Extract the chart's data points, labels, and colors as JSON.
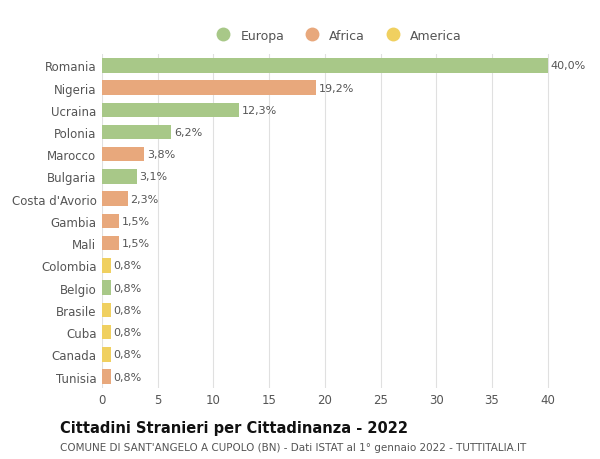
{
  "categories": [
    "Romania",
    "Nigeria",
    "Ucraina",
    "Polonia",
    "Marocco",
    "Bulgaria",
    "Costa d'Avorio",
    "Gambia",
    "Mali",
    "Colombia",
    "Belgio",
    "Brasile",
    "Cuba",
    "Canada",
    "Tunisia"
  ],
  "values": [
    40.0,
    19.2,
    12.3,
    6.2,
    3.8,
    3.1,
    2.3,
    1.5,
    1.5,
    0.8,
    0.8,
    0.8,
    0.8,
    0.8,
    0.8
  ],
  "labels": [
    "40,0%",
    "19,2%",
    "12,3%",
    "6,2%",
    "3,8%",
    "3,1%",
    "2,3%",
    "1,5%",
    "1,5%",
    "0,8%",
    "0,8%",
    "0,8%",
    "0,8%",
    "0,8%",
    "0,8%"
  ],
  "continents": [
    "Europa",
    "Africa",
    "Europa",
    "Europa",
    "Africa",
    "Europa",
    "Africa",
    "Africa",
    "Africa",
    "America",
    "Europa",
    "America",
    "America",
    "America",
    "Africa"
  ],
  "colors": {
    "Europa": "#a8c888",
    "Africa": "#e8a87c",
    "America": "#f0d060"
  },
  "title": "Cittadini Stranieri per Cittadinanza - 2022",
  "subtitle": "COMUNE DI SANT'ANGELO A CUPOLO (BN) - Dati ISTAT al 1° gennaio 2022 - TUTTITALIA.IT",
  "xlim": [
    0,
    42
  ],
  "xticks": [
    0,
    5,
    10,
    15,
    20,
    25,
    30,
    35,
    40
  ],
  "background_color": "#ffffff",
  "grid_color": "#e0e0e0",
  "bar_height": 0.65,
  "title_fontsize": 10.5,
  "subtitle_fontsize": 7.5,
  "tick_fontsize": 8.5,
  "label_fontsize": 8.0,
  "legend_fontsize": 9.0
}
